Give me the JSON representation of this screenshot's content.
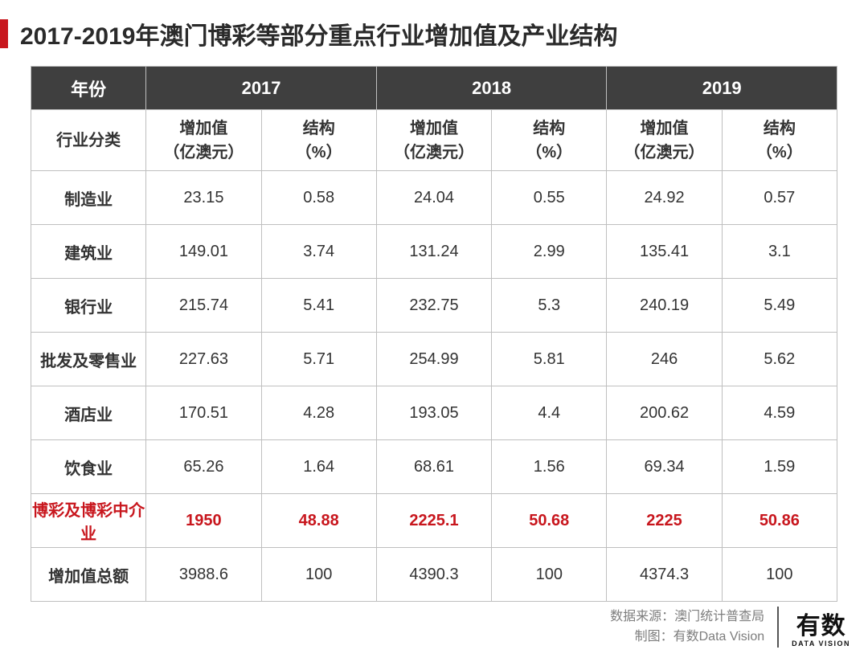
{
  "title": "2017-2019年澳门博彩等部分重点行业增加值及产业结构",
  "colors": {
    "accent": "#c8161d",
    "header_bg": "#3f3f3f",
    "header_text": "#ffffff",
    "border": "#bfbfbf",
    "body_text": "#333333",
    "title_color": "#2a2a2a",
    "footer_text": "#7d7d7d",
    "logo_color": "#111111",
    "background": "#ffffff"
  },
  "table": {
    "year_header_label": "年份",
    "category_header_label": "行业分类",
    "years": [
      "2017",
      "2018",
      "2019"
    ],
    "sub_headers": {
      "value": "增加值\n（亿澳元）",
      "structure": "结构\n（%）"
    },
    "column_count": 7,
    "rows": [
      {
        "label": "制造业",
        "cells": [
          "23.15",
          "0.58",
          "24.04",
          "0.55",
          "24.92",
          "0.57"
        ],
        "highlight": false
      },
      {
        "label": "建筑业",
        "cells": [
          "149.01",
          "3.74",
          "131.24",
          "2.99",
          "135.41",
          "3.1"
        ],
        "highlight": false
      },
      {
        "label": "银行业",
        "cells": [
          "215.74",
          "5.41",
          "232.75",
          "5.3",
          "240.19",
          "5.49"
        ],
        "highlight": false
      },
      {
        "label": "批发及零售业",
        "cells": [
          "227.63",
          "5.71",
          "254.99",
          "5.81",
          "246",
          "5.62"
        ],
        "highlight": false
      },
      {
        "label": "酒店业",
        "cells": [
          "170.51",
          "4.28",
          "193.05",
          "4.4",
          "200.62",
          "4.59"
        ],
        "highlight": false
      },
      {
        "label": "饮食业",
        "cells": [
          "65.26",
          "1.64",
          "68.61",
          "1.56",
          "69.34",
          "1.59"
        ],
        "highlight": false
      },
      {
        "label": "博彩及博彩中介业",
        "cells": [
          "1950",
          "48.88",
          "2225.1",
          "50.68",
          "2225",
          "50.86"
        ],
        "highlight": true
      },
      {
        "label": "增加值总额",
        "cells": [
          "3988.6",
          "100",
          "4390.3",
          "100",
          "4374.3",
          "100"
        ],
        "highlight": false
      }
    ]
  },
  "footer": {
    "source_label": "数据来源：澳门统计普查局",
    "credit_label": "制图：有数Data Vision"
  },
  "logo": {
    "cn": "有数",
    "en": "DATA VISION"
  }
}
